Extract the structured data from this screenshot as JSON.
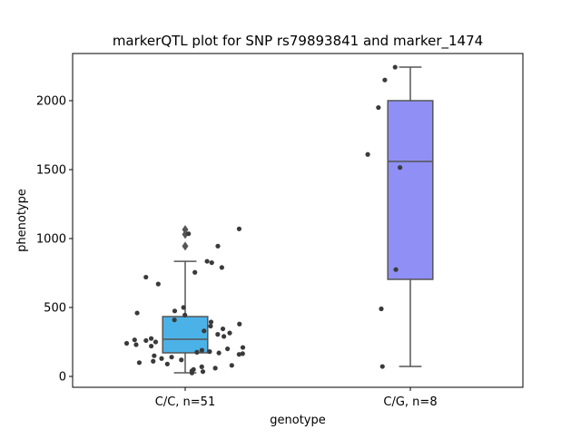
{
  "chart_data": {
    "type": "box",
    "title": "markerQTL plot for SNP rs79893841 and marker_1474",
    "xlabel": "genotype",
    "ylabel": "phenotype",
    "categories": [
      "C/C, n=51",
      "C/G, n=8"
    ],
    "boxes": [
      {
        "whislo": 26,
        "q1": 171,
        "med": 270,
        "q3": 434,
        "whishi": 835,
        "fliers": [
          1065,
          1030,
          945
        ],
        "color": "#4bb2e8"
      },
      {
        "whislo": 72,
        "q1": 704,
        "med": 1559,
        "q3": 2000,
        "whishi": 2243,
        "fliers": [],
        "color": "#8f8ff5"
      }
    ],
    "points": [
      [
        1070,
        1035,
        945,
        835,
        825,
        790,
        755,
        720,
        670,
        500,
        475,
        460,
        445,
        410,
        395,
        380,
        365,
        345,
        330,
        315,
        305,
        290,
        275,
        265,
        260,
        250,
        240,
        230,
        220,
        210,
        200,
        190,
        180,
        175,
        170,
        165,
        160,
        150,
        140,
        130,
        120,
        110,
        100,
        90,
        80,
        70,
        60,
        50,
        40,
        35,
        25
      ],
      [
        2243,
        2150,
        1950,
        1610,
        1515,
        775,
        490,
        72
      ]
    ],
    "point_color": "#3a3a3a",
    "ylim": [
      -79,
      2342
    ],
    "yticks": [
      0,
      500,
      1000,
      1500,
      2000
    ]
  }
}
